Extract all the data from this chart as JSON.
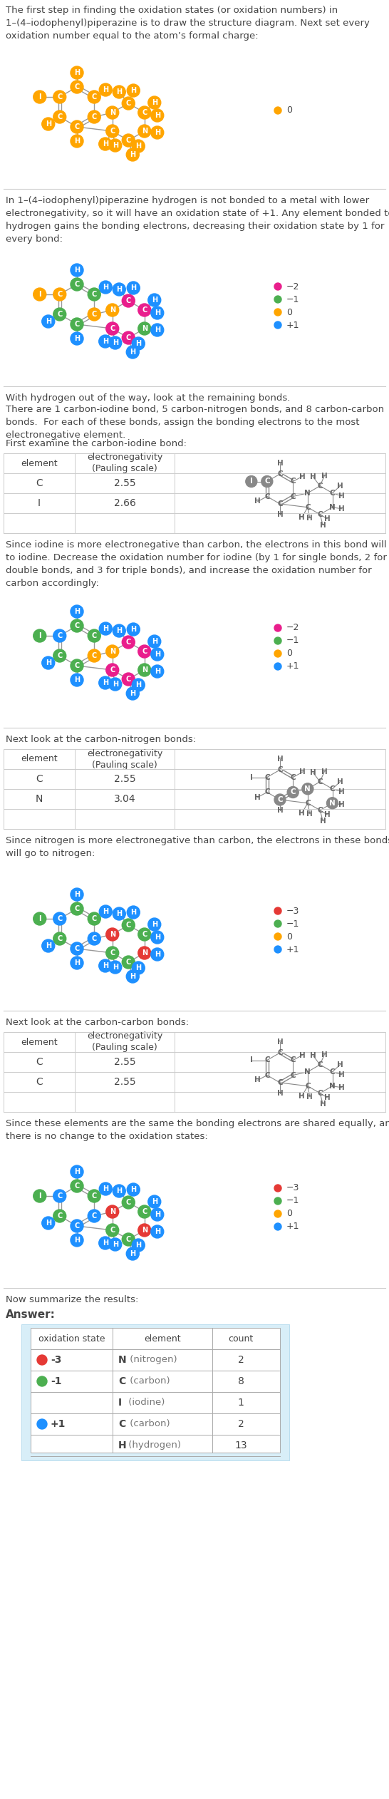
{
  "bg_color": "#ffffff",
  "text_color": "#444444",
  "gray_text": "#555555",
  "orange": "#FFA500",
  "green": "#4CAF50",
  "blue": "#1E90FF",
  "pink": "#E91E8C",
  "red": "#E53935",
  "bond_gray": "#999999",
  "table_mol_color": "#555555",
  "para1": "The first step in finding the oxidation states (or oxidation numbers) in\n1–(4–iodophenyl)piperazine is to draw the structure diagram. Next set every\noxidation number equal to the atom’s formal charge:",
  "para2": "In 1–(4–iodophenyl)piperazine hydrogen is not bonded to a metal with lower\nelectronegativity, so it will have an oxidation state of +1. Any element bonded to\nhydrogen gains the bonding electrons, decreasing their oxidation state by 1 for\nevery bond:",
  "para3a": "With hydrogen out of the way, look at the remaining bonds.",
  "para3b": "There are 1 carbon-iodine bond, 5 carbon-nitrogen bonds, and 8 carbon-carbon\nbonds.  For each of these bonds, assign the bonding electrons to the most\nelectronegative element.",
  "para4a": "First examine the carbon-iodine bond:",
  "para4b": "Since iodine is more electronegative than carbon, the electrons in this bond will go\nto iodine. Decrease the oxidation number for iodine (by 1 for single bonds, 2 for\ndouble bonds, and 3 for triple bonds), and increase the oxidation number for\ncarbon accordingly:",
  "para5a": "Next look at the carbon-nitrogen bonds:",
  "para5b": "Since nitrogen is more electronegative than carbon, the electrons in these bonds\nwill go to nitrogen:",
  "para6a": "Next look at the carbon-carbon bonds:",
  "para6b": "Since these elements are the same the bonding electrons are shared equally, and\nthere is no change to the oxidation states:",
  "para7": "Now summarize the results:",
  "answer_label": "Answer:"
}
